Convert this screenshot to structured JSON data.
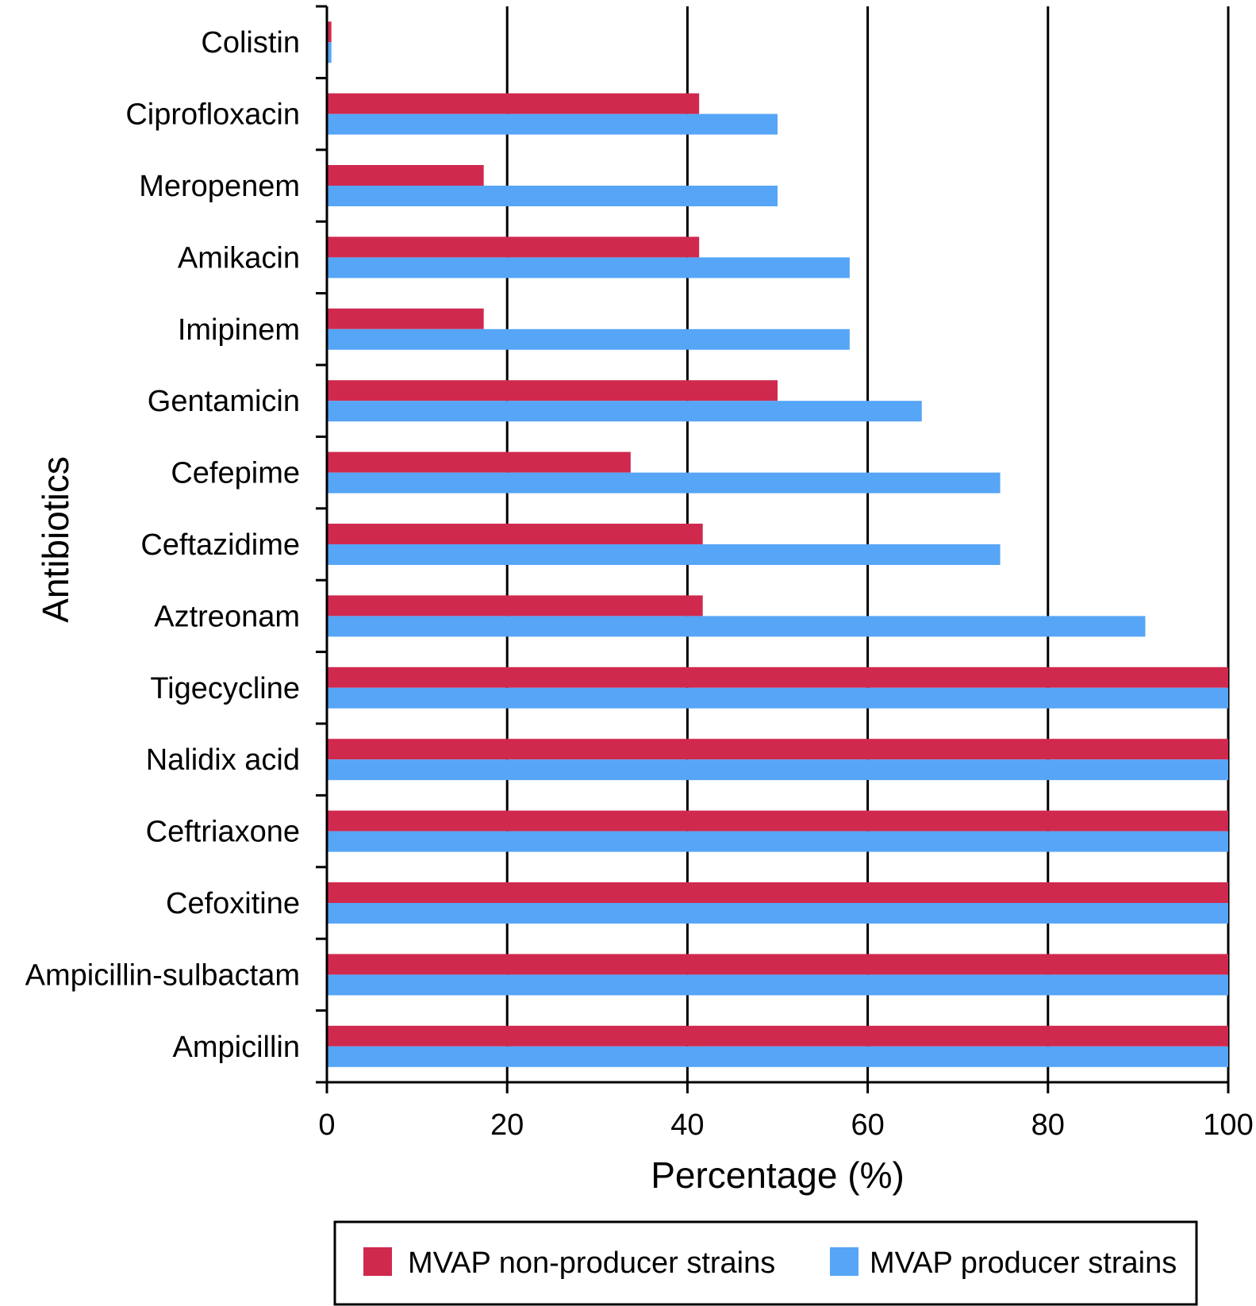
{
  "chart_data": {
    "type": "bar",
    "orientation": "horizontal",
    "title": "",
    "xlabel": "Percentage (%)",
    "ylabel": "Antibiotics",
    "xlim": [
      0,
      100
    ],
    "xticks": [
      "0",
      "20",
      "40",
      "60",
      "80",
      "100"
    ],
    "xtick_values": [
      0,
      20,
      40,
      60,
      80,
      100
    ],
    "grid": "vertical",
    "legend_position": "bottom",
    "categories": [
      "Colistin",
      "Ciprofloxacin",
      "Meropenem",
      "Amikacin",
      "Imipinem",
      "Gentamicin",
      "Cefepime",
      "Ceftazidime",
      "Aztreonam",
      "Tigecycline",
      "Nalidix acid",
      "Ceftriaxone",
      "Cefoxitine",
      "Ampicillin-sulbactam",
      "Ampicillin"
    ],
    "series": [
      {
        "name": "MVAP non-producer strains",
        "color": "#d0294e",
        "values": [
          0.5,
          41.3,
          17.4,
          41.3,
          17.4,
          50.0,
          33.7,
          41.7,
          41.7,
          100,
          100,
          100,
          100,
          100,
          100
        ]
      },
      {
        "name": "MVAP producer strains",
        "color": "#56a5f6",
        "values": [
          0.5,
          50.0,
          50.0,
          58.0,
          58.0,
          66.0,
          74.7,
          74.7,
          90.8,
          100,
          100,
          100,
          100,
          100,
          100
        ]
      }
    ]
  }
}
